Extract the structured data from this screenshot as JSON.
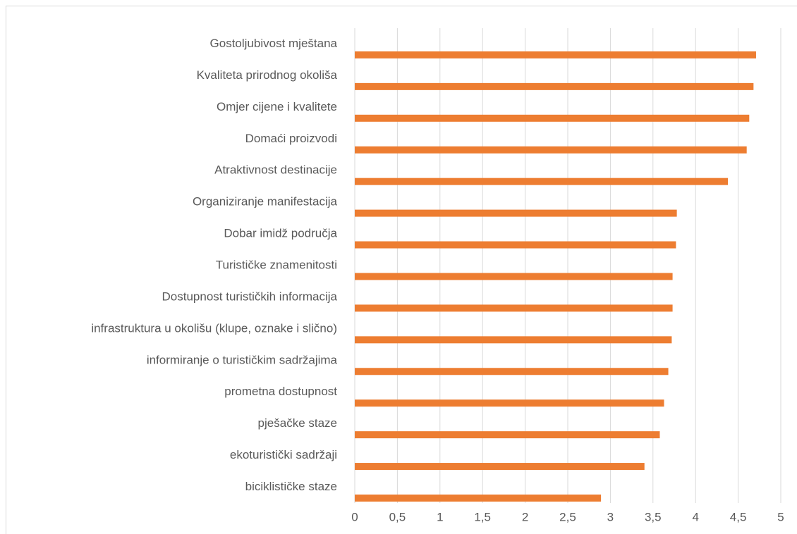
{
  "chart_data": {
    "type": "bar",
    "orientation": "horizontal",
    "categories": [
      "Gostoljubivost mještana",
      "Kvaliteta prirodnog okoliša",
      "Omjer cijene i kvalitete",
      "Domaći proizvodi",
      "Atraktivnost destinacije",
      "Organiziranje manifestacija",
      "Dobar imidž područja",
      "Turističke znamenitosti",
      "Dostupnost turističkih informacija",
      "infrastruktura u okolišu (klupe, oznake i slično)",
      "informiranje o turističkim sadržajima ",
      "prometna dostupnost",
      "pješačke staze",
      "ekoturistički sadržaji",
      "biciklističke staze"
    ],
    "values": [
      4.71,
      4.68,
      4.63,
      4.6,
      4.38,
      3.78,
      3.77,
      3.73,
      3.73,
      3.72,
      3.68,
      3.63,
      3.58,
      3.4,
      2.89
    ],
    "color": "#ed7d31",
    "xlim": [
      0,
      5
    ],
    "xticks": [
      0,
      {
        "value": 0.5,
        "label": "0,5"
      },
      1,
      {
        "value": 1.5,
        "label": "1,5"
      },
      2,
      {
        "value": 2.5,
        "label": "2,5"
      },
      3,
      {
        "value": 3.5,
        "label": "3,5"
      },
      4,
      {
        "value": 4.5,
        "label": "4,5"
      },
      5
    ],
    "grid": true
  }
}
